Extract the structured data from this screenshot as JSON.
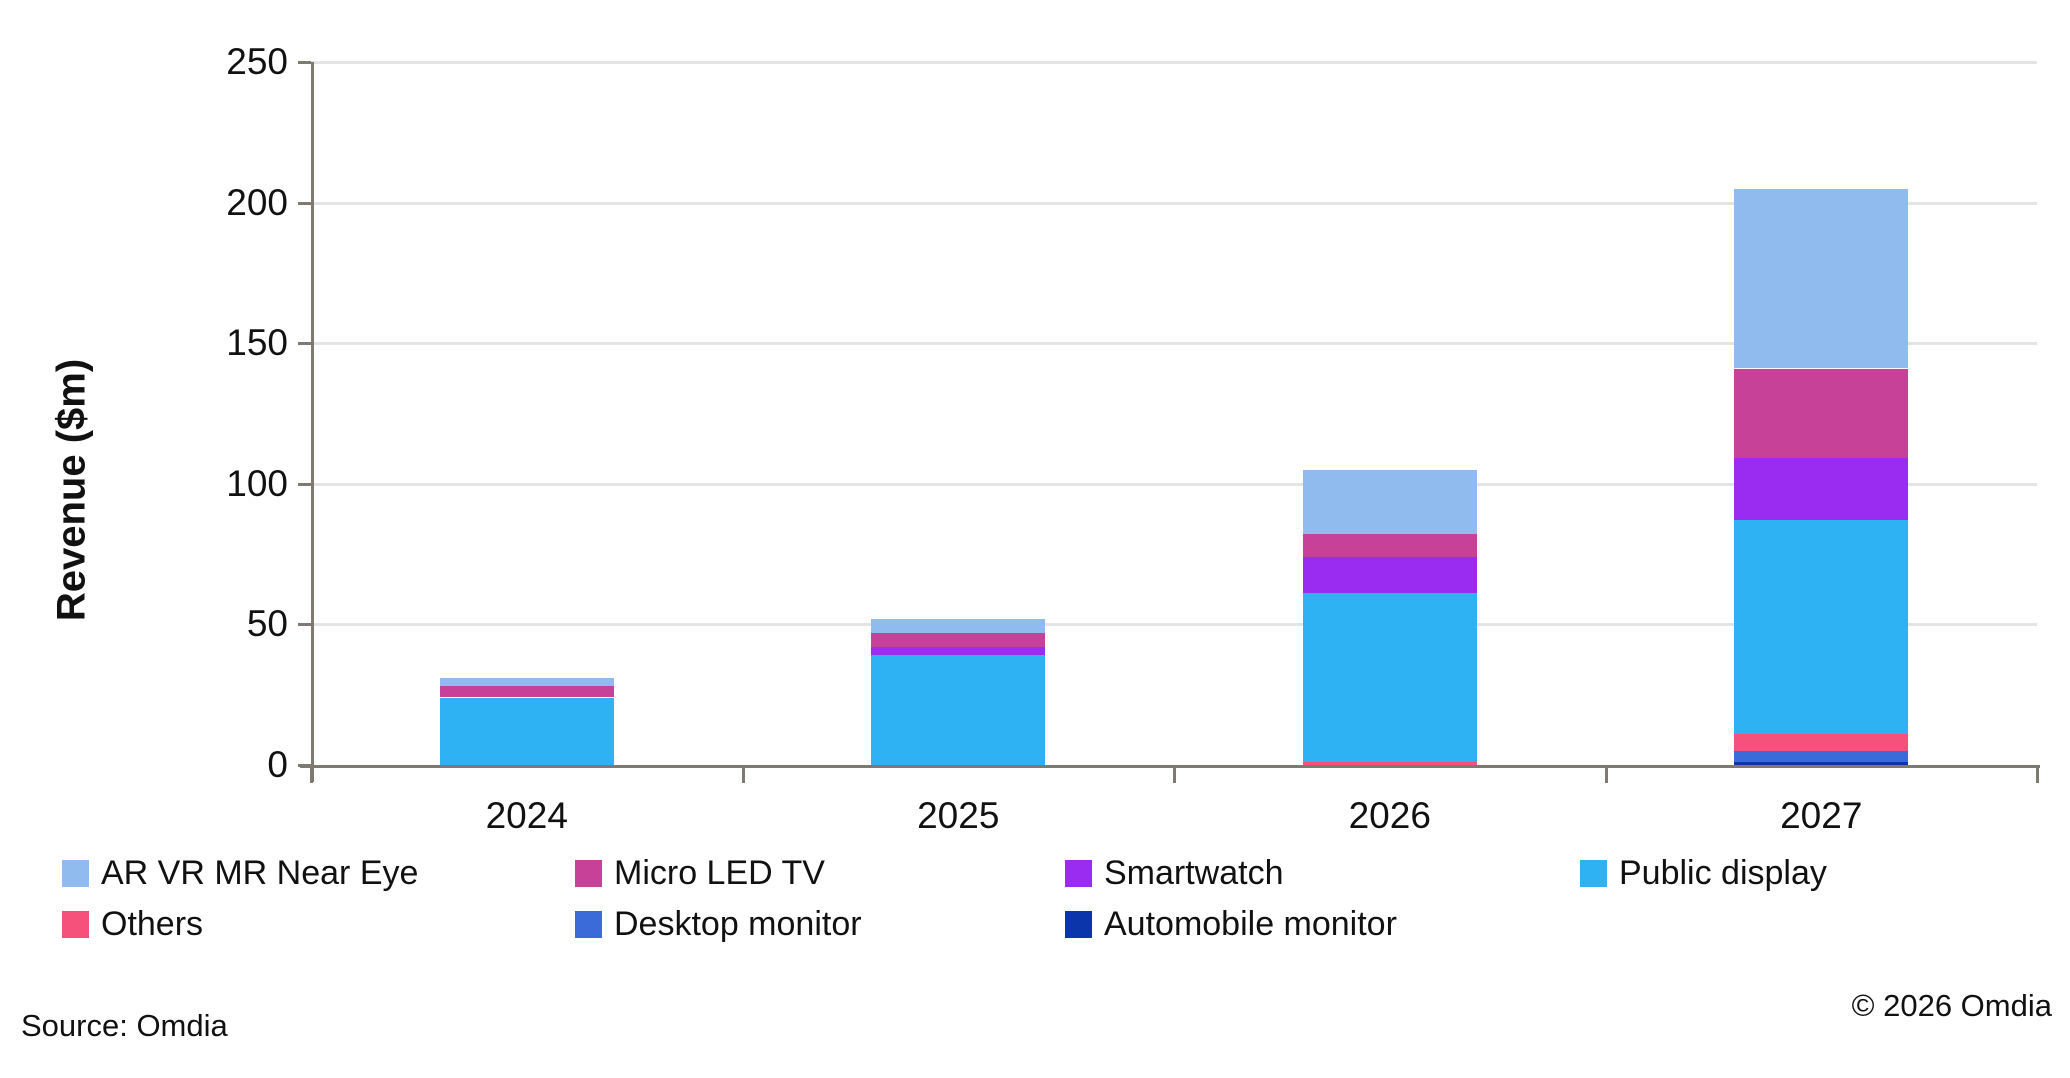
{
  "chart_data": {
    "type": "bar",
    "stacked": true,
    "categories": [
      "2024",
      "2025",
      "2026",
      "2027"
    ],
    "series": [
      {
        "name": "AR VR MR Near Eye",
        "color": "#90BBEF",
        "values": [
          3,
          5,
          23,
          64
        ]
      },
      {
        "name": "Micro LED TV",
        "color": "#C84198",
        "values": [
          4,
          5,
          8,
          32
        ]
      },
      {
        "name": "Smartwatch",
        "color": "#9A2BF0",
        "values": [
          0,
          3,
          13,
          22
        ]
      },
      {
        "name": "Public display",
        "color": "#2FB2F4",
        "values": [
          24,
          39,
          60,
          76
        ]
      },
      {
        "name": "Others",
        "color": "#F6517A",
        "values": [
          0,
          0,
          1,
          6
        ]
      },
      {
        "name": "Desktop monitor",
        "color": "#3B6AD9",
        "values": [
          0,
          0,
          0,
          4
        ]
      },
      {
        "name": "Automobile monitor",
        "color": "#0B35AB",
        "values": [
          0,
          0,
          0,
          1
        ]
      }
    ],
    "stack_order": [
      "Automobile monitor",
      "Desktop monitor",
      "Others",
      "Public display",
      "Smartwatch",
      "Micro LED TV",
      "AR VR MR Near Eye"
    ],
    "totals": [
      31,
      52,
      105,
      205
    ],
    "xlabel": "",
    "ylabel": "Revenue ($m)",
    "ylim": [
      0,
      250
    ],
    "ytick_step": 50,
    "yticks": [
      0,
      50,
      100,
      150,
      200,
      250
    ],
    "grid": "horizontal",
    "legend_position": "bottom"
  },
  "legend": {
    "rows": [
      [
        "AR VR MR Near Eye",
        "Micro LED TV",
        "Smartwatch",
        "Public display"
      ],
      [
        "Others",
        "Desktop monitor",
        "Automobile monitor"
      ]
    ]
  },
  "footer": {
    "source": "Source: Omdia",
    "copyright": "© 2026 Omdia"
  }
}
